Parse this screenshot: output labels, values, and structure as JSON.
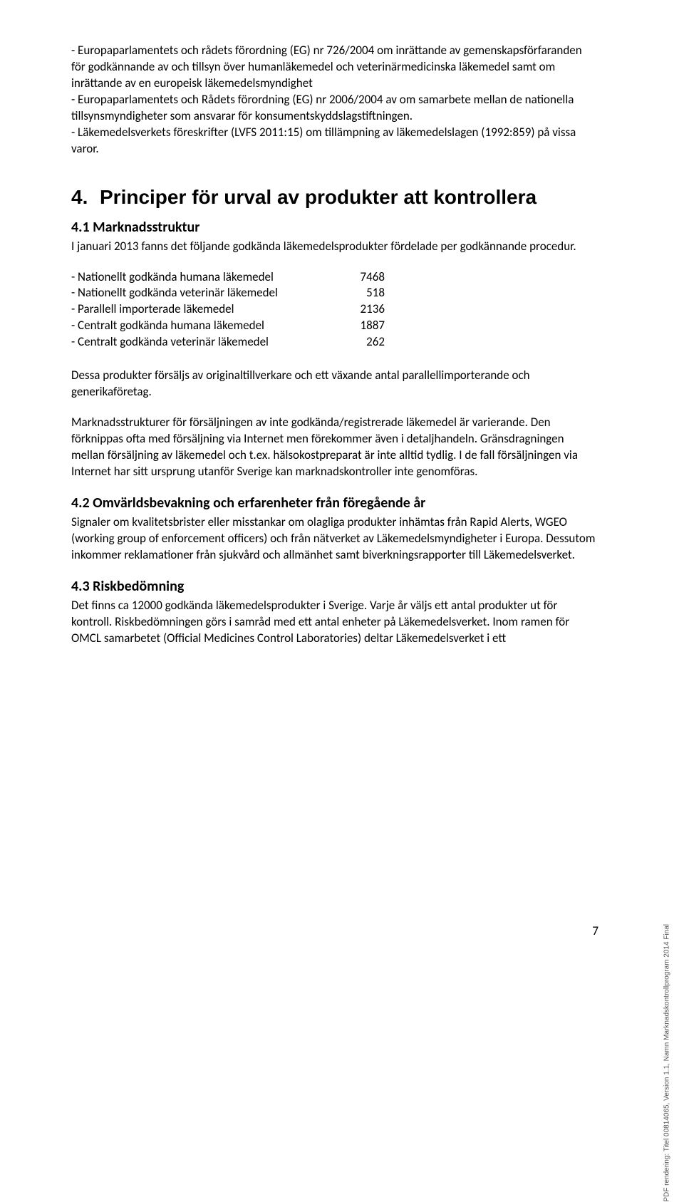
{
  "intro_para": "- Europaparlamentets och rådets förordning (EG) nr 726/2004 om inrättande av gemenskapsförfaranden för godkännande av och tillsyn över humanläkemedel och veterinärmedicinska läkemedel samt om inrättande av en europeisk läkemedelsmyndighet\n- Europaparlamentets och Rådets förordning (EG) nr 2006/2004 av om samarbete mellan de nationella tillsynsmyndigheter som ansvarar för konsumentskyddslagstiftningen.\n- Läkemedelsverkets föreskrifter (LVFS 2011:15) om tillämpning av läkemedelslagen (1992:859) på vissa varor.",
  "section4": {
    "num": "4.",
    "title": "Principer för urval av produkter att kontrollera"
  },
  "s41": {
    "heading": "4.1 Marknadsstruktur",
    "lead": "I januari 2013 fanns det följande godkända läkemedelsprodukter fördelade per godkännande procedur.",
    "stats": [
      {
        "label": "- Nationellt godkända humana läkemedel",
        "value": "7468"
      },
      {
        "label": "- Nationellt godkända veterinär läkemedel",
        "value": "518"
      },
      {
        "label": "- Parallell importerade läkemedel",
        "value": "2136"
      },
      {
        "label": "- Centralt godkända humana läkemedel",
        "value": "1887"
      },
      {
        "label": "- Centralt godkända veterinär läkemedel",
        "value": "262"
      }
    ],
    "para2": "Dessa produkter försäljs av originaltillverkare och ett växande antal parallellimporterande och generikaföretag.",
    "para3": "Marknadsstrukturer för försäljningen av inte godkända/registrerade läkemedel är varierande. Den förknippas ofta med försäljning via Internet men förekommer även i detaljhandeln. Gränsdragningen mellan försäljning av läkemedel och t.ex. hälsokostpreparat är inte alltid tydlig. I de fall försäljningen via Internet har sitt ursprung utanför Sverige kan marknadskontroller inte genomföras."
  },
  "s42": {
    "heading": "4.2 Omvärldsbevakning och erfarenheter från föregående år",
    "para": "Signaler om kvalitetsbrister eller misstankar om olagliga produkter inhämtas från Rapid Alerts, WGEO (working group of enforcement officers) och från nätverket av Läkemedelsmyndigheter i Europa. Dessutom inkommer reklamationer från sjukvård och allmänhet samt biverkningsrapporter till Läkemedelsverket."
  },
  "s43": {
    "heading": "4.3 Riskbedömning",
    "para": "Det finns ca 12000 godkända läkemedelsprodukter i Sverige. Varje år väljs ett antal produkter ut för kontroll. Riskbedömningen görs i samråd med ett antal enheter på Läkemedelsverket. Inom ramen för OMCL samarbetet (Official Medicines Control Laboratories) deltar Läkemedelsverket i ett"
  },
  "page_number": "7",
  "side_text": "PDF rendering: Titel 00814065, Version 1.1, Namn Marknadskontrollprogram 2014 Final"
}
